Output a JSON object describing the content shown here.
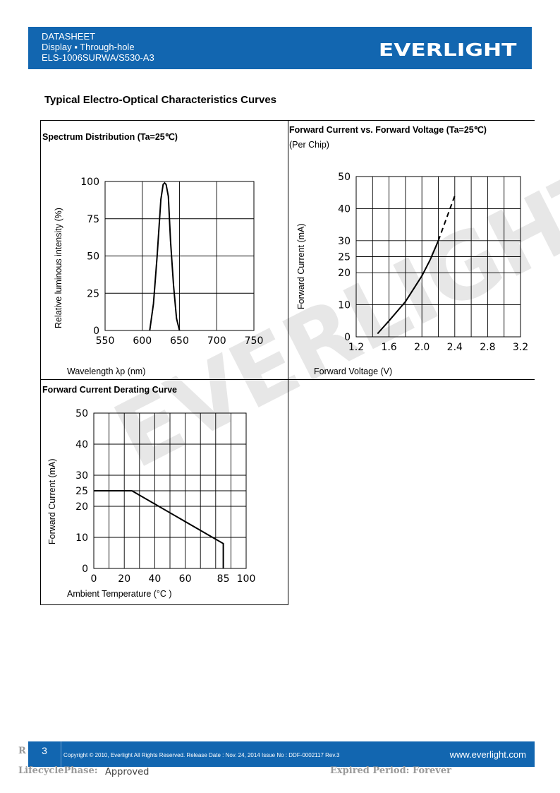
{
  "header": {
    "line1": "DATASHEET",
    "line2": "Display ▪ Through-hole",
    "line3": "ELS-1006SURWA/S530-A3",
    "logo": "EVERLIGHT"
  },
  "section_title": "Typical Electro-Optical Characteristics Curves",
  "watermark": "EVERLIGHT",
  "panels": {
    "spectrum": {
      "title": "Spectrum Distribution (Ta=25℃)",
      "ylabel": "Relative luminous intensity (%)",
      "xlabel": "Wavelength λp (nm)"
    },
    "ivcurve": {
      "title": "Forward Current vs. Forward Voltage (Ta=25℃)",
      "subtitle": "(Per Chip)",
      "ylabel": "Forward Current (mA)",
      "xlabel": "Forward Voltage (V)"
    },
    "derating": {
      "title": "Forward Current Derating Curve",
      "ylabel": "Forward Current (mA)",
      "xlabel": "Ambient Temperature (°C )"
    }
  },
  "chart_data": [
    {
      "type": "line",
      "title": "Spectrum Distribution (Ta=25℃)",
      "xlabel": "Wavelength λp (nm)",
      "ylabel": "Relative luminous intensity (%)",
      "xlim": [
        550,
        750
      ],
      "ylim": [
        0,
        100
      ],
      "xticks": [
        "550",
        "600",
        "650",
        "700",
        "750"
      ],
      "yticks": [
        "0",
        "25",
        "50",
        "75",
        "100"
      ],
      "grid": true,
      "x": [
        610,
        615,
        620,
        625,
        628,
        630,
        632,
        635,
        638,
        642,
        646,
        650
      ],
      "y": [
        0,
        18,
        50,
        88,
        98,
        99,
        98,
        90,
        60,
        30,
        8,
        0
      ]
    },
    {
      "type": "line",
      "title": "Forward Current vs. Forward Voltage (Ta=25℃)",
      "xlabel": "Forward Voltage (V)",
      "ylabel": "Forward Current (mA)",
      "xlim": [
        1.2,
        3.2
      ],
      "ylim": [
        0,
        50
      ],
      "xticks": [
        "1.2",
        "1.6",
        "2.0",
        "2.4",
        "2.8",
        "3.2"
      ],
      "yticks": [
        "0",
        "10",
        "20",
        "25",
        "30",
        "40",
        "50"
      ],
      "grid": true,
      "series": [
        {
          "style": "solid",
          "x": [
            1.46,
            1.6,
            1.8,
            2.0,
            2.1,
            2.2
          ],
          "y": [
            1,
            5,
            11,
            19,
            24,
            30
          ]
        },
        {
          "style": "dashed",
          "x": [
            2.2,
            2.3,
            2.4
          ],
          "y": [
            30,
            37,
            44
          ]
        }
      ]
    },
    {
      "type": "line",
      "title": "Forward Current Derating Curve",
      "xlabel": "Ambient Temperature (°C )",
      "ylabel": "Forward Current (mA)",
      "xlim": [
        0,
        100
      ],
      "ylim": [
        0,
        50
      ],
      "xticks": [
        "0",
        "20",
        "40",
        "60",
        "85",
        "100"
      ],
      "yticks": [
        "0",
        "10",
        "20",
        "25",
        "30",
        "40",
        "50"
      ],
      "grid": true,
      "x": [
        0,
        25,
        85,
        85
      ],
      "y": [
        25,
        25,
        8,
        0
      ]
    }
  ],
  "footer": {
    "page": "3",
    "copyright": "Copyright © 2010, Everlight All Rights Reserved. Release Date : Nov. 24, 2014 Issue No : DDF-0002117   Rev.3",
    "site": "www.everlight.com"
  },
  "under": {
    "r": "R",
    "lifecycle": "LifecyclePhase:",
    "approved": "Approved",
    "expired": "Expired Period: Forever"
  }
}
